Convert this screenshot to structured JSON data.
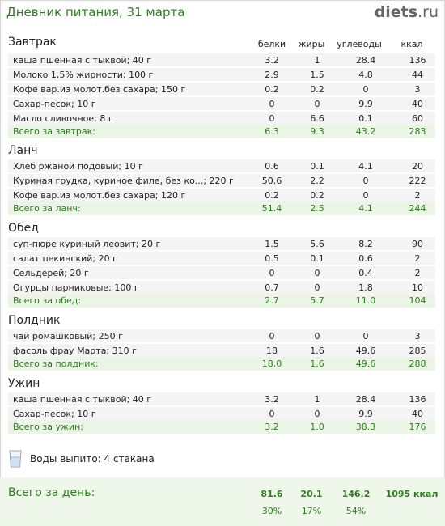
{
  "header": {
    "title": "Дневник питания, 31 марта",
    "logo_name": "diets",
    "logo_tld": ".ru"
  },
  "columns": [
    "белки",
    "жиры",
    "углеводы",
    "ккал"
  ],
  "meals": [
    {
      "title": "Завтрак",
      "items": [
        {
          "name": "каша пшенная с тыквой; 40 г",
          "b": "3.2",
          "f": "1",
          "c": "28.4",
          "k": "136"
        },
        {
          "name": "Молоко 1,5% жирности; 100 г",
          "b": "2.9",
          "f": "1.5",
          "c": "4.8",
          "k": "44"
        },
        {
          "name": "Кофе вар.из молот.без сахара; 150 г",
          "b": "0.2",
          "f": "0.2",
          "c": "0",
          "k": "3"
        },
        {
          "name": "Сахар-песок; 10 г",
          "b": "0",
          "f": "0",
          "c": "9.9",
          "k": "40"
        },
        {
          "name": "Масло сливочное; 8 г",
          "b": "0",
          "f": "6.6",
          "c": "0.1",
          "k": "60"
        }
      ],
      "total": {
        "name": "Всего за завтрак:",
        "b": "6.3",
        "f": "9.3",
        "c": "43.2",
        "k": "283"
      }
    },
    {
      "title": "Ланч",
      "items": [
        {
          "name": "Хлеб ржаной подовый; 10 г",
          "b": "0.6",
          "f": "0.1",
          "c": "4.1",
          "k": "20"
        },
        {
          "name": "Куриная грудка, куриное филе, без ко...; 220 г",
          "b": "50.6",
          "f": "2.2",
          "c": "0",
          "k": "222"
        },
        {
          "name": "Кофе вар.из молот.без сахара; 120 г",
          "b": "0.2",
          "f": "0.2",
          "c": "0",
          "k": "2"
        }
      ],
      "total": {
        "name": "Всего за ланч:",
        "b": "51.4",
        "f": "2.5",
        "c": "4.1",
        "k": "244"
      }
    },
    {
      "title": "Обед",
      "items": [
        {
          "name": "суп-пюре куриный леовит; 20 г",
          "b": "1.5",
          "f": "5.6",
          "c": "8.2",
          "k": "90"
        },
        {
          "name": "салат пекинский; 20 г",
          "b": "0.5",
          "f": "0.1",
          "c": "0.6",
          "k": "2"
        },
        {
          "name": "Сельдерей; 20 г",
          "b": "0",
          "f": "0",
          "c": "0.4",
          "k": "2"
        },
        {
          "name": "Огурцы парниковые; 100 г",
          "b": "0.7",
          "f": "0",
          "c": "1.8",
          "k": "10"
        }
      ],
      "total": {
        "name": "Всего за обед:",
        "b": "2.7",
        "f": "5.7",
        "c": "11.0",
        "k": "104"
      }
    },
    {
      "title": "Полдник",
      "items": [
        {
          "name": "чай ромашковый; 250 г",
          "b": "0",
          "f": "0",
          "c": "0",
          "k": "3"
        },
        {
          "name": "фасоль фрау Марта; 310 г",
          "b": "18",
          "f": "1.6",
          "c": "49.6",
          "k": "285"
        }
      ],
      "total": {
        "name": "Всего за полдник:",
        "b": "18.0",
        "f": "1.6",
        "c": "49.6",
        "k": "288"
      }
    },
    {
      "title": "Ужин",
      "items": [
        {
          "name": "каша пшенная с тыквой; 40 г",
          "b": "3.2",
          "f": "1",
          "c": "28.4",
          "k": "136"
        },
        {
          "name": "Сахар-песок; 10 г",
          "b": "0",
          "f": "0",
          "c": "9.9",
          "k": "40"
        }
      ],
      "total": {
        "name": "Всего за ужин:",
        "b": "3.2",
        "f": "1.0",
        "c": "38.3",
        "k": "176"
      }
    }
  ],
  "water": {
    "icon": "water-glass-icon",
    "label": "Воды выпито: 4 стакана"
  },
  "day": {
    "title": "Всего за день:",
    "b": "81.6",
    "f": "20.1",
    "c": "146.2",
    "k": "1095 ккал",
    "b_pct": "30%",
    "f_pct": "17%",
    "c_pct": "54%"
  },
  "colors": {
    "accent_green": "#2e7d1f",
    "total_bg": "#eaf5e5",
    "row_bg": "#f4f4f4"
  }
}
